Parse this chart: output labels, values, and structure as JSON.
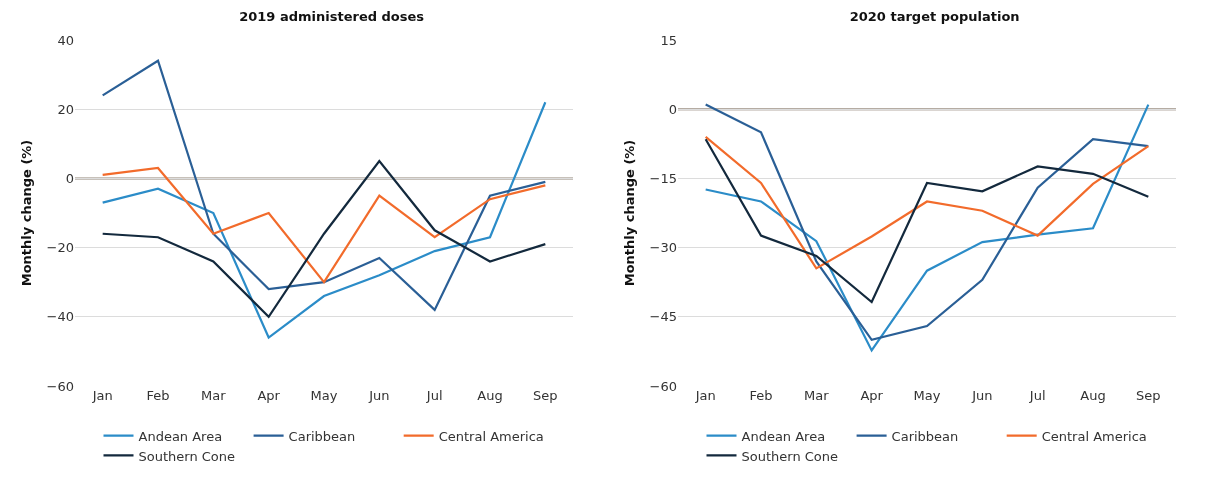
{
  "chart_data": [
    {
      "type": "line",
      "title": "2019 administered doses",
      "ylabel": "Monthly change (%)",
      "categories": [
        "Jan",
        "Feb",
        "Mar",
        "Apr",
        "May",
        "Jun",
        "Jul",
        "Aug",
        "Sep"
      ],
      "ylim": [
        -60,
        40
      ],
      "yticks": [
        -60,
        -40,
        -20,
        0,
        20,
        40
      ],
      "grid": "y",
      "legend": "bottom",
      "marker": "none",
      "line_style": "solid",
      "ref_lines": [
        {
          "axis": "y",
          "value": 0,
          "color": "#b5aca3"
        }
      ],
      "series": [
        {
          "name": "Andean Area",
          "color": "#2b8cc8",
          "values": [
            -7,
            -3,
            -10,
            -46,
            -34,
            -28,
            -21,
            -17,
            22
          ]
        },
        {
          "name": "Caribbean",
          "color": "#2a5f96",
          "values": [
            24,
            34,
            -16,
            -32,
            -30,
            -23,
            -38,
            -5,
            -1
          ]
        },
        {
          "name": "Central America",
          "color": "#f26b2b",
          "values": [
            1,
            3,
            -16,
            -10,
            -30,
            -5,
            -17,
            -6,
            -2
          ]
        },
        {
          "name": "Southern Cone",
          "color": "#13293d",
          "values": [
            -16,
            -17,
            -24,
            -40,
            -16,
            5,
            -15,
            -24,
            -19
          ]
        }
      ]
    },
    {
      "type": "line",
      "title": "2020 target population",
      "ylabel": "Monthly change (%)",
      "categories": [
        "Jan",
        "Feb",
        "Mar",
        "Apr",
        "May",
        "Jun",
        "Jul",
        "Aug",
        "Sep"
      ],
      "ylim": [
        -60,
        15
      ],
      "yticks": [
        -60,
        -45,
        -30,
        -15,
        0,
        15
      ],
      "grid": "y",
      "legend": "bottom",
      "marker": "none",
      "line_style": "solid",
      "ref_lines": [
        {
          "axis": "y",
          "value": 0,
          "color": "#b5aca3"
        }
      ],
      "series": [
        {
          "name": "Andean Area",
          "color": "#2b8cc8",
          "values": [
            -17.4,
            -20,
            -28.6,
            -52.3,
            -35,
            -28.8,
            -27.2,
            -25.8,
            1
          ]
        },
        {
          "name": "Caribbean",
          "color": "#2a5f96",
          "values": [
            1,
            -5,
            -33,
            -50,
            -47,
            -37,
            -17,
            -6.5,
            -8
          ]
        },
        {
          "name": "Central America",
          "color": "#f26b2b",
          "values": [
            -6,
            -16,
            -34.5,
            -27.6,
            -20,
            -22,
            -27.4,
            -16.2,
            -8
          ]
        },
        {
          "name": "Southern Cone",
          "color": "#13293d",
          "values": [
            -6.5,
            -27.4,
            -31.8,
            -41.8,
            -16,
            -17.8,
            -12.4,
            -14,
            -19
          ]
        }
      ]
    }
  ]
}
